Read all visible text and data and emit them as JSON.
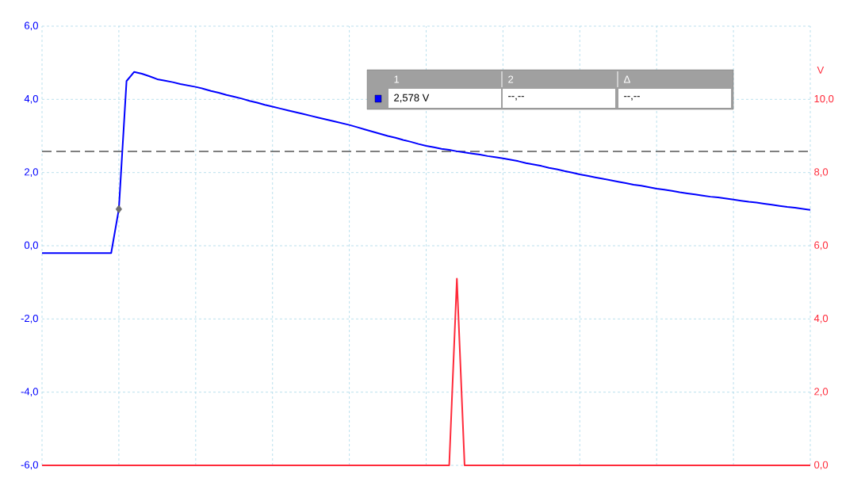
{
  "chart_data": {
    "type": "line",
    "categories": [
      null,
      null,
      null,
      null,
      null,
      null,
      null,
      null,
      null,
      null,
      null,
      null,
      null,
      null,
      null,
      null,
      null,
      null,
      null,
      null,
      null,
      null,
      null,
      null,
      null,
      null,
      null,
      null,
      null,
      null,
      null,
      null,
      null,
      null,
      null,
      null,
      null,
      null,
      null,
      null,
      null,
      null,
      null,
      null,
      null,
      null,
      null,
      null,
      null,
      null,
      null,
      null,
      null,
      null,
      null,
      null,
      null,
      null,
      null,
      null,
      null,
      null,
      null,
      null,
      null,
      null,
      null,
      null,
      null,
      null,
      null,
      null,
      null,
      null,
      null,
      null,
      null,
      null,
      null,
      null,
      null,
      null,
      null,
      null,
      null,
      null,
      null,
      null,
      null,
      null,
      null,
      null,
      null,
      null,
      null,
      null,
      null,
      null,
      null,
      null,
      null
    ],
    "series": [
      {
        "color": "#0000ff",
        "line_style": "solid",
        "values": [
          -0.2,
          -0.2,
          -0.2,
          -0.2,
          -0.2,
          -0.2,
          -0.2,
          -0.2,
          -0.2,
          -0.2,
          1.0,
          4.5,
          4.75,
          4.7,
          4.63,
          4.55,
          4.51,
          4.47,
          4.42,
          4.38,
          4.34,
          4.29,
          4.23,
          4.18,
          4.12,
          4.07,
          4.02,
          3.96,
          3.91,
          3.85,
          3.8,
          3.75,
          3.7,
          3.65,
          3.6,
          3.55,
          3.5,
          3.45,
          3.4,
          3.35,
          3.3,
          3.24,
          3.18,
          3.12,
          3.06,
          3.0,
          2.95,
          2.89,
          2.84,
          2.78,
          2.73,
          2.69,
          2.65,
          2.62,
          2.58,
          2.55,
          2.52,
          2.49,
          2.45,
          2.42,
          2.39,
          2.35,
          2.31,
          2.26,
          2.22,
          2.18,
          2.13,
          2.09,
          2.04,
          2.0,
          1.95,
          1.91,
          1.87,
          1.83,
          1.79,
          1.75,
          1.71,
          1.67,
          1.64,
          1.6,
          1.56,
          1.53,
          1.5,
          1.46,
          1.43,
          1.4,
          1.37,
          1.34,
          1.32,
          1.29,
          1.26,
          1.23,
          1.2,
          1.18,
          1.15,
          1.12,
          1.09,
          1.06,
          1.04,
          1.01,
          0.98
        ]
      },
      {
        "color": "#ff2a3a",
        "axis": "y2",
        "line_style": "solid",
        "values": [
          0,
          0,
          0,
          0,
          0,
          0,
          0,
          0,
          0,
          0,
          0,
          0,
          0,
          0,
          0,
          0,
          0,
          0,
          0,
          0,
          0,
          0,
          0,
          0,
          0,
          0,
          0,
          0,
          0,
          0,
          0,
          0,
          0,
          0,
          0,
          0,
          0,
          0,
          0,
          0,
          0,
          0,
          0,
          0,
          0,
          0,
          0,
          0,
          0,
          0,
          0,
          0,
          0,
          0,
          5.1,
          0,
          0,
          0,
          0,
          0,
          0,
          0,
          0,
          0,
          0,
          0,
          0,
          0,
          0,
          0,
          0,
          0,
          0,
          0,
          0,
          0,
          0,
          0,
          0,
          0,
          0,
          0,
          0,
          0,
          0,
          0,
          0,
          0,
          0,
          0,
          0,
          0,
          0,
          0,
          0,
          0,
          0,
          0,
          0,
          0,
          0
        ]
      },
      {
        "type": "scatter",
        "color": "#707070",
        "marker": "diamond",
        "values": [
          null,
          null,
          null,
          null,
          null,
          null,
          null,
          null,
          null,
          null,
          1.0,
          null,
          null,
          null,
          null,
          null,
          null,
          null,
          null,
          null,
          null,
          null,
          null,
          null,
          null,
          null,
          null,
          null,
          null,
          null,
          null,
          null,
          null,
          null,
          null,
          null,
          null,
          null,
          null,
          null,
          null,
          null,
          null,
          null,
          null,
          null,
          null,
          null,
          null,
          null,
          null,
          null,
          null,
          null,
          null,
          null,
          null,
          null,
          null,
          null,
          null,
          null,
          null,
          null,
          null,
          null,
          null,
          null,
          null,
          null,
          null,
          null,
          null,
          null,
          null,
          null,
          null,
          null,
          null,
          null,
          null,
          null,
          null,
          null,
          null,
          null,
          null,
          null,
          null,
          null,
          null,
          null,
          null,
          null,
          null,
          null,
          null,
          null,
          null,
          null,
          null
        ]
      }
    ],
    "ylim": [
      -6,
      6
    ],
    "yticks": [
      {
        "value": -6,
        "label": "-6,0"
      },
      {
        "value": -4,
        "label": "-4,0"
      },
      {
        "value": -2,
        "label": "-2,0"
      },
      {
        "value": 0,
        "label": "0,0"
      },
      {
        "value": 2,
        "label": "2,0"
      },
      {
        "value": 4,
        "label": "4,0"
      },
      {
        "value": 6,
        "label": "6,0"
      }
    ],
    "y2lim": [
      0,
      12
    ],
    "y2ticks": [
      {
        "value": 0,
        "label": "0,0"
      },
      {
        "value": 2,
        "label": "2,0"
      },
      {
        "value": 4,
        "label": "4,0"
      },
      {
        "value": 6,
        "label": "6,0"
      },
      {
        "value": 8,
        "label": "8,0"
      },
      {
        "value": 10,
        "label": "10,0"
      }
    ],
    "y2label": "V",
    "ref_lines": [
      {
        "axis": "y",
        "value": 2.578,
        "color": "#000000",
        "line_style": "dashed"
      }
    ],
    "grid": true,
    "annotations": [
      "1",
      "2",
      "Δ",
      "2,578 V",
      "--,--",
      "--,--"
    ]
  }
}
